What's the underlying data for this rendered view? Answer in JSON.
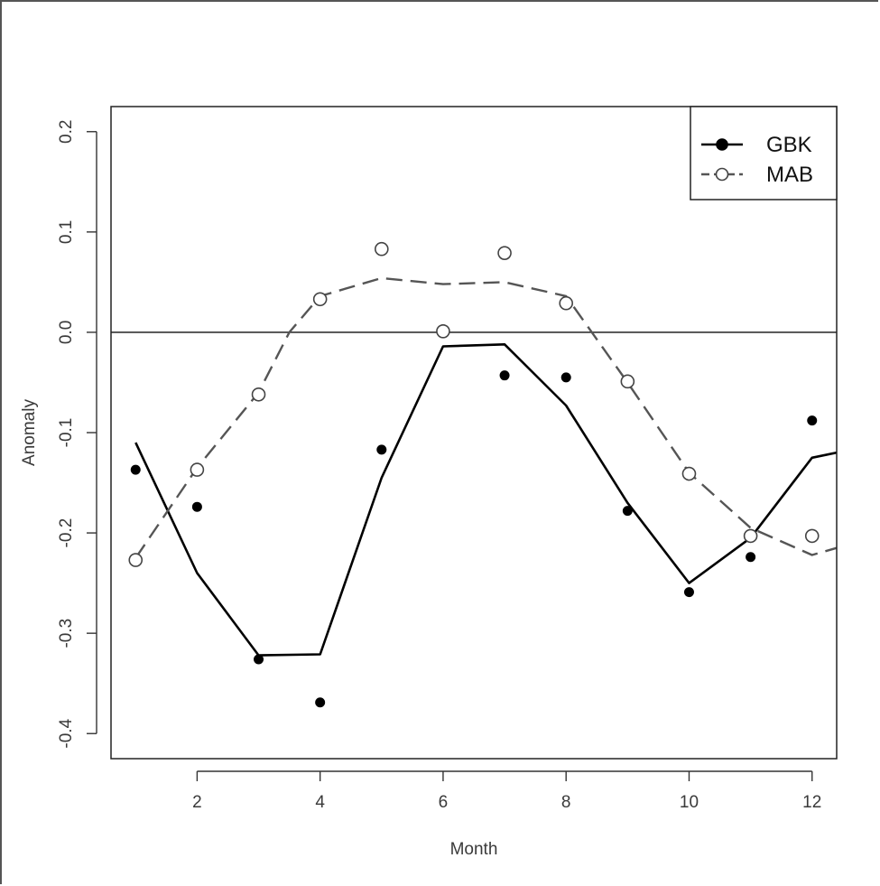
{
  "chart_data": {
    "type": "scatter",
    "title": "",
    "xlabel": "Month",
    "ylabel": "Anomaly",
    "xlim": [
      0.6,
      12.4
    ],
    "ylim": [
      -0.425,
      0.225
    ],
    "x_ticks": [
      2,
      4,
      6,
      8,
      10,
      12
    ],
    "x_tick_labels": [
      "2",
      "4",
      "6",
      "8",
      "10",
      "12"
    ],
    "y_ticks": [
      -0.4,
      -0.3,
      -0.2,
      -0.1,
      0.0,
      0.1,
      0.2
    ],
    "y_tick_labels": [
      "-0.4",
      "-0.3",
      "-0.2",
      "-0.1",
      "0.0",
      "0.1",
      "0.2"
    ],
    "reference_line_y": 0.0,
    "grid": false,
    "legend_position": "top-right",
    "series": [
      {
        "name": "GBK",
        "marker": "filled-circle",
        "line_style": "solid",
        "color": "#000000",
        "points": {
          "x": [
            1,
            2,
            3,
            4,
            5,
            6,
            7,
            8,
            9,
            10,
            11,
            12
          ],
          "y": [
            -0.137,
            -0.174,
            -0.326,
            -0.369,
            -0.117,
            0.003,
            -0.043,
            -0.045,
            -0.178,
            -0.259,
            -0.224,
            -0.088
          ]
        },
        "smooth": {
          "x": [
            1,
            2,
            3,
            4,
            5,
            6,
            7,
            8,
            9,
            10,
            11,
            12,
            12.4
          ],
          "y": [
            -0.11,
            -0.24,
            -0.322,
            -0.321,
            -0.145,
            -0.014,
            -0.012,
            -0.073,
            -0.17,
            -0.25,
            -0.205,
            -0.125,
            -0.12
          ]
        }
      },
      {
        "name": "MAB",
        "marker": "open-circle",
        "line_style": "dashed",
        "color": "#555555",
        "points": {
          "x": [
            1,
            2,
            3,
            4,
            5,
            6,
            7,
            8,
            9,
            10,
            11,
            12
          ],
          "y": [
            -0.227,
            -0.137,
            -0.062,
            0.033,
            0.083,
            0.001,
            0.079,
            0.029,
            -0.049,
            -0.141,
            -0.203,
            -0.203
          ]
        },
        "smooth": {
          "x": [
            1,
            2,
            3,
            3.5,
            4,
            5,
            6,
            7,
            8,
            9,
            10,
            11,
            12,
            12.4
          ],
          "y": [
            -0.225,
            -0.135,
            -0.06,
            0.0,
            0.036,
            0.054,
            0.048,
            0.05,
            0.036,
            -0.05,
            -0.14,
            -0.195,
            -0.222,
            -0.215
          ]
        }
      }
    ]
  }
}
